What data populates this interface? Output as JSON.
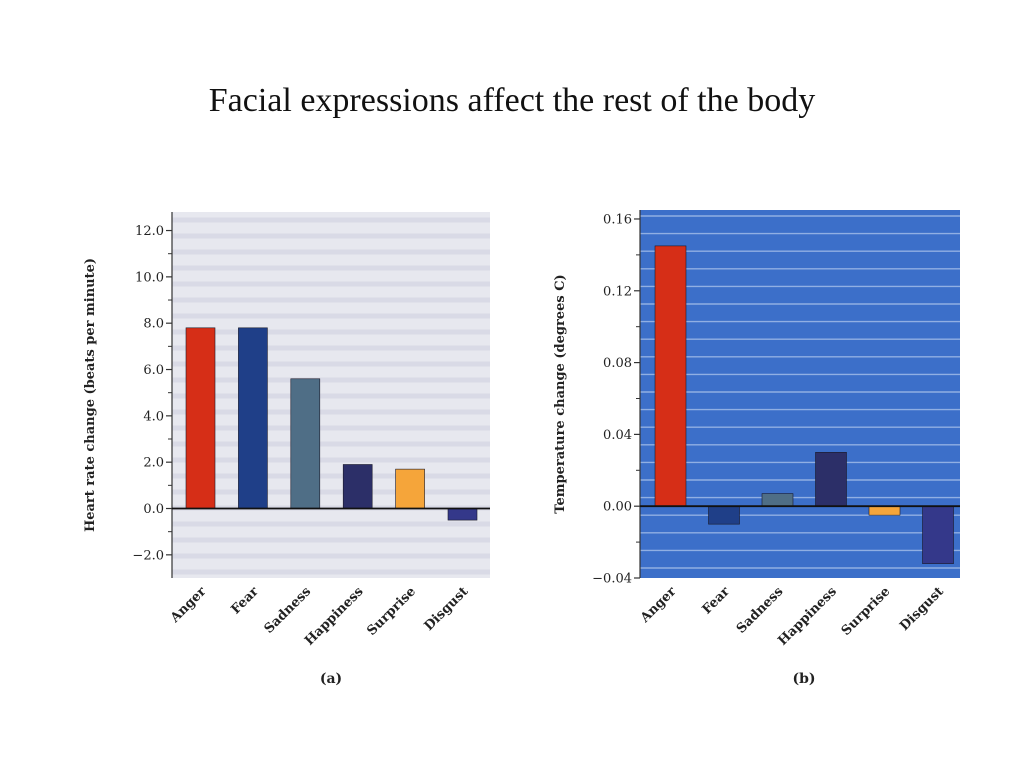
{
  "slide": {
    "title": "Facial expressions affect the rest of the body"
  },
  "colors": {
    "anger": "#d62e17",
    "fear": "#1f3f88",
    "sadness": "#4f6e86",
    "happiness": "#2c2f68",
    "surprise": "#f5a53a",
    "disgust": "#34388a",
    "panel_a_bg": "#e7e8ef",
    "panel_b_bg": "#3c6fc9"
  },
  "chart_data": [
    {
      "type": "bar",
      "panel_label": "(a)",
      "categories": [
        "Anger",
        "Fear",
        "Sadness",
        "Happiness",
        "Surprise",
        "Disgust"
      ],
      "values": [
        7.8,
        7.8,
        5.6,
        1.9,
        1.7,
        -0.5
      ],
      "ylabel": "Heart rate change (beats per minute)",
      "ylim": [
        -3.0,
        12.8
      ],
      "yticks": [
        -2.0,
        0.0,
        2.0,
        4.0,
        6.0,
        8.0,
        10.0,
        12.0
      ],
      "ytick_labels": [
        "−2.0",
        "0.0",
        "2.0",
        "4.0",
        "6.0",
        "8.0",
        "10.0",
        "12.0"
      ],
      "grid": false
    },
    {
      "type": "bar",
      "panel_label": "(b)",
      "categories": [
        "Anger",
        "Fear",
        "Sadness",
        "Happiness",
        "Surprise",
        "Disgust"
      ],
      "values": [
        0.145,
        -0.01,
        0.007,
        0.03,
        -0.005,
        -0.032
      ],
      "ylabel": "Temperature change (degrees C)",
      "ylim": [
        -0.04,
        0.165
      ],
      "yticks": [
        -0.04,
        0.0,
        0.04,
        0.08,
        0.12,
        0.16
      ],
      "ytick_labels": [
        "−0.04",
        "0.00",
        "0.04",
        "0.08",
        "0.12",
        "0.16"
      ],
      "grid": true
    }
  ]
}
